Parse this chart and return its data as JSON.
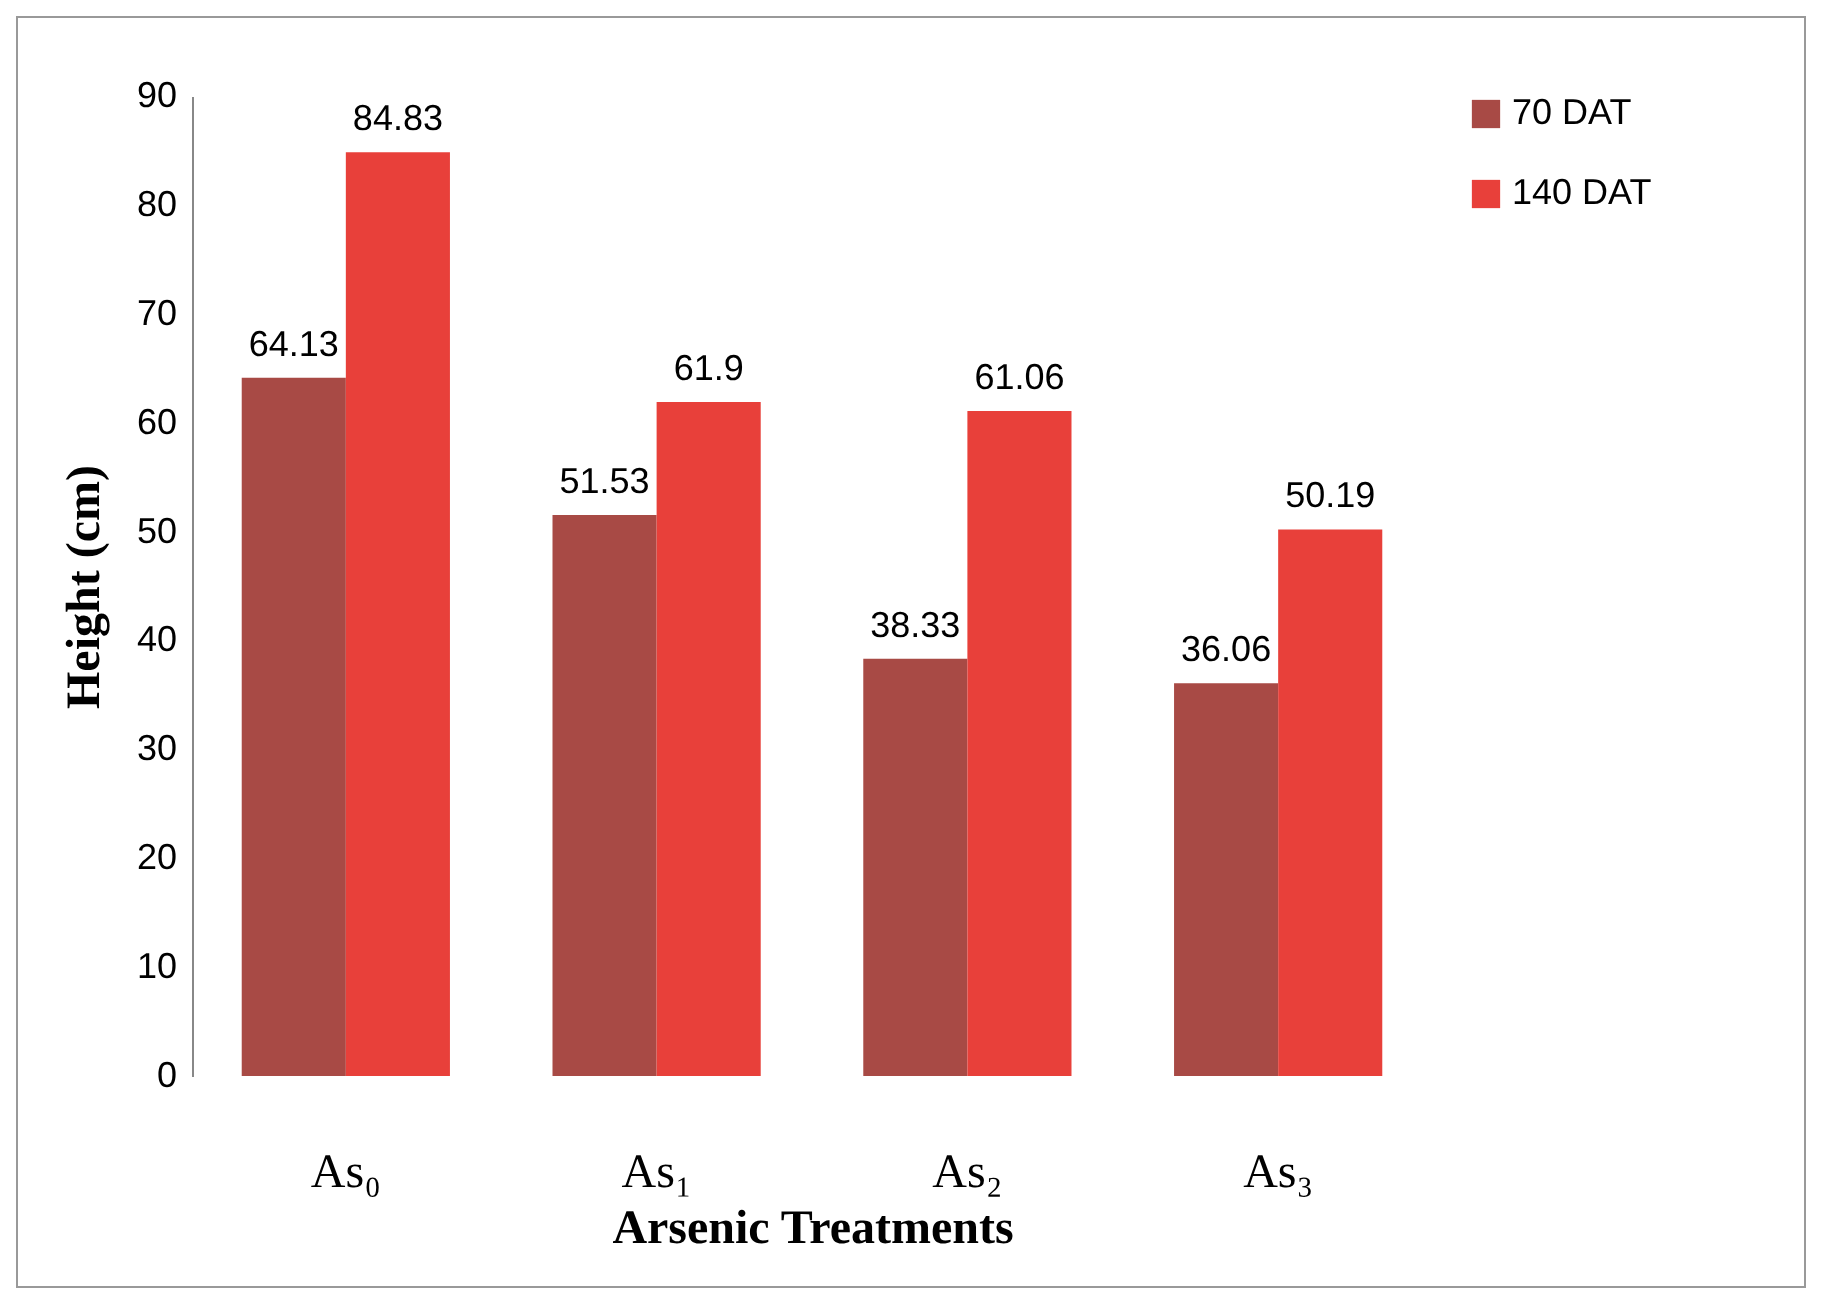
{
  "chart_data": {
    "type": "bar",
    "xlabel": "Arsenic Treatments",
    "ylabel": "Height (cm)",
    "categories": [
      "As₀",
      "As₁",
      "As₂",
      "As₃"
    ],
    "series": [
      {
        "name": "70 DAT",
        "color": "#a84a45",
        "values": [
          64.13,
          51.53,
          38.33,
          36.06
        ]
      },
      {
        "name": "140 DAT",
        "color": "#e8403a",
        "values": [
          84.83,
          61.9,
          61.06,
          50.19
        ]
      }
    ],
    "ylim": [
      0,
      90
    ],
    "yticks": [
      0,
      10,
      20,
      30,
      40,
      50,
      60,
      70,
      80,
      90
    ],
    "grid": false,
    "legend": "right",
    "data_labels": true
  }
}
